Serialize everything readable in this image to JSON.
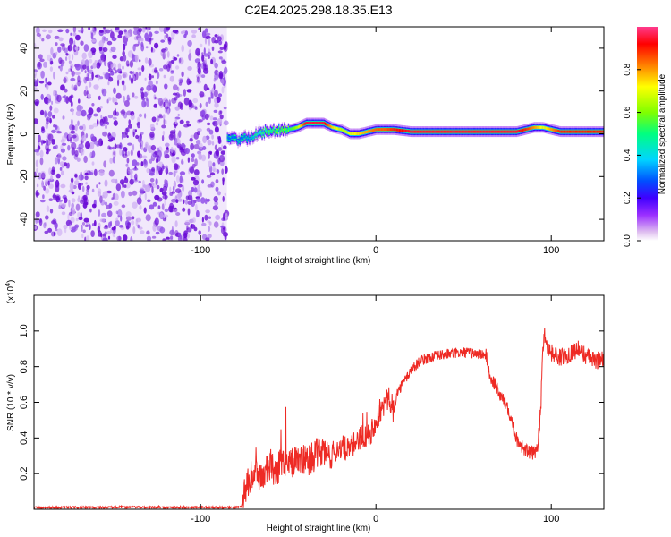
{
  "title": "C2E4.2025.298.18.35.E13",
  "colors": {
    "snr_line": "#ee2a24",
    "axis": "#000000",
    "background": "#ffffff",
    "noise_purple": "#6a0cd6",
    "noise_light": "#c9a6f2",
    "colorbar_stops": [
      "#ffffff",
      "#e0c0f0",
      "#9b30ff",
      "#3f00ff",
      "#0050ff",
      "#00d5ff",
      "#00ff80",
      "#80ff00",
      "#ffff00",
      "#ff8000",
      "#ff0000",
      "#ff3a8c"
    ]
  },
  "chart_data": [
    {
      "type": "heatmap",
      "name": "spectrogram",
      "title": "C2E4.2025.298.18.35.E13",
      "xlabel": "Height of straight line (km)",
      "ylabel": "Frequency (Hz)",
      "xlim": [
        -195,
        130
      ],
      "ylim": [
        -50,
        50
      ],
      "xticks": [
        -100,
        0,
        100
      ],
      "yticks": [
        -40,
        -20,
        0,
        20,
        40
      ],
      "noise_region_x": [
        -195,
        -85
      ],
      "signal_track": {
        "x": [
          -85,
          -80,
          -75,
          -70,
          -65,
          -60,
          -55,
          -50,
          -45,
          -40,
          -35,
          -30,
          -25,
          -20,
          -15,
          -10,
          -5,
          0,
          5,
          10,
          20,
          30,
          40,
          50,
          60,
          70,
          80,
          85,
          90,
          95,
          100,
          105,
          110,
          115,
          120,
          125,
          130
        ],
        "freq": [
          -2,
          -3,
          -2,
          -1,
          1,
          1,
          2,
          2,
          3,
          5,
          5,
          5,
          3,
          2,
          0,
          0,
          1,
          2,
          2,
          2,
          1,
          1,
          1,
          1,
          1,
          1,
          1,
          2,
          3,
          3,
          2,
          1,
          1,
          1,
          1,
          1,
          1
        ],
        "amplitude": [
          0.3,
          0.3,
          0.3,
          0.35,
          0.4,
          0.45,
          0.5,
          0.5,
          0.65,
          0.95,
          0.95,
          0.95,
          0.75,
          0.65,
          0.7,
          0.75,
          0.8,
          0.85,
          0.85,
          0.9,
          0.95,
          0.95,
          0.95,
          0.95,
          0.95,
          0.95,
          0.95,
          0.9,
          0.8,
          0.7,
          0.8,
          0.9,
          0.9,
          0.9,
          0.9,
          0.9,
          0.9
        ]
      },
      "colorbar": {
        "label": "Normalized spectral amplitude",
        "range": [
          0,
          1
        ],
        "ticks": [
          0.0,
          0.2,
          0.4,
          0.6,
          0.8
        ]
      }
    },
    {
      "type": "line",
      "name": "snr",
      "xlabel": "Height of straight line (km)",
      "ylabel": "SNR (10 * v/v)",
      "scale_label": "(x10",
      "scale_exponent": "4",
      "xlim": [
        -195,
        130
      ],
      "ylim": [
        0,
        1.2
      ],
      "xticks": [
        -100,
        0,
        100
      ],
      "yticks": [
        0.2,
        0.4,
        0.6,
        0.8,
        1.0
      ],
      "series": [
        {
          "name": "SNR",
          "x": [
            -195,
            -180,
            -160,
            -140,
            -120,
            -100,
            -90,
            -80,
            -76,
            -75,
            -72,
            -68,
            -65,
            -62,
            -60,
            -58,
            -55,
            -52,
            -50,
            -45,
            -40,
            -35,
            -30,
            -27,
            -25,
            -20,
            -15,
            -10,
            -6,
            -3,
            0,
            3,
            5,
            8,
            10,
            12,
            15,
            20,
            25,
            30,
            40,
            50,
            60,
            63,
            65,
            68,
            70,
            75,
            78,
            80,
            85,
            90,
            92,
            94,
            95,
            96,
            98,
            100,
            105,
            110,
            115,
            120,
            125,
            130
          ],
          "values": [
            0.01,
            0.01,
            0.01,
            0.012,
            0.01,
            0.012,
            0.01,
            0.012,
            0.02,
            0.1,
            0.18,
            0.2,
            0.18,
            0.22,
            0.25,
            0.2,
            0.24,
            0.26,
            0.25,
            0.28,
            0.27,
            0.3,
            0.33,
            0.3,
            0.31,
            0.35,
            0.33,
            0.4,
            0.42,
            0.43,
            0.5,
            0.55,
            0.6,
            0.62,
            0.55,
            0.65,
            0.7,
            0.78,
            0.83,
            0.85,
            0.87,
            0.88,
            0.87,
            0.86,
            0.74,
            0.7,
            0.65,
            0.58,
            0.48,
            0.4,
            0.33,
            0.31,
            0.35,
            0.55,
            0.85,
            1.0,
            0.9,
            0.88,
            0.85,
            0.87,
            0.9,
            0.86,
            0.83,
            0.85
          ]
        }
      ]
    }
  ]
}
